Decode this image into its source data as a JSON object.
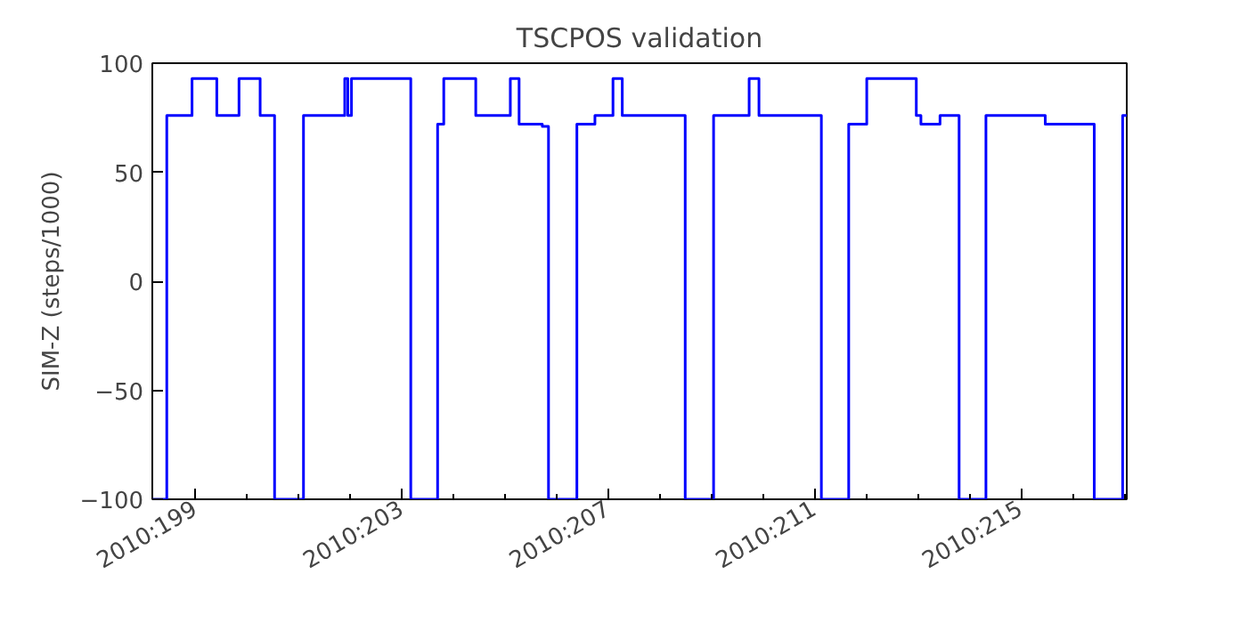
{
  "chart_data": {
    "type": "step",
    "title": "TSCPOS validation",
    "ylabel": "SIM-Z (steps/1000)",
    "x": [
      "2010-07-17T03:50",
      "2010-07-17T10:34",
      "2010-07-17T22:19",
      "2010-07-18T09:50",
      "2010-07-18T20:10",
      "2010-07-19T06:00",
      "2010-07-19T12:43",
      "2010-07-20T02:10",
      "2010-07-20T21:22",
      "2010-07-20T22:48",
      "2010-07-21T00:29",
      "2010-07-22T04:05",
      "2010-07-22T16:34",
      "2010-07-22T19:26",
      "2010-07-23T10:19",
      "2010-07-24T02:24",
      "2010-07-24T06:29",
      "2010-07-24T17:17",
      "2010-07-24T20:10",
      "2010-07-25T09:22",
      "2010-07-25T17:46",
      "2010-07-26T02:10",
      "2010-07-26T06:29",
      "2010-07-27T11:46",
      "2010-07-28T00:58",
      "2010-07-28T17:31",
      "2010-07-28T22:05",
      "2010-07-30T03:07",
      "2010-07-30T15:50",
      "2010-07-31T00:14",
      "2010-07-31T23:17",
      "2010-08-01T01:26",
      "2010-08-01T10:19",
      "2010-08-01T19:12",
      "2010-08-02T07:41",
      "2010-08-03T11:17",
      "2010-08-04T10:05",
      "2010-08-04T23:17",
      "2010-08-05T01:12"
    ],
    "series": [
      {
        "color": "#0000ff",
        "values": [
          -100,
          76,
          93,
          76,
          93,
          76,
          -100,
          76,
          93,
          76,
          93,
          -100,
          72,
          93,
          76,
          93,
          72,
          71,
          -100,
          72,
          76,
          93,
          76,
          -100,
          76,
          93,
          76,
          -100,
          72,
          93,
          76,
          72,
          76,
          -100,
          76,
          72,
          -100,
          76,
          76
        ]
      }
    ],
    "xlim": [
      "2010-07-17T03:50",
      "2010-08-05T01:12"
    ],
    "ylim": [
      -100,
      100
    ],
    "yticks": [
      -100,
      -50,
      0,
      50,
      100
    ],
    "xticks": [
      {
        "value": "2010-07-18",
        "label": "2010:199"
      },
      {
        "value": "2010-07-19",
        "label": null
      },
      {
        "value": "2010-07-20",
        "label": null
      },
      {
        "value": "2010-07-21",
        "label": null
      },
      {
        "value": "2010-07-22",
        "label": "2010:203"
      },
      {
        "value": "2010-07-23",
        "label": null
      },
      {
        "value": "2010-07-24",
        "label": null
      },
      {
        "value": "2010-07-25",
        "label": null
      },
      {
        "value": "2010-07-26",
        "label": "2010:207"
      },
      {
        "value": "2010-07-27",
        "label": null
      },
      {
        "value": "2010-07-28",
        "label": null
      },
      {
        "value": "2010-07-29",
        "label": null
      },
      {
        "value": "2010-07-30",
        "label": "2010:211"
      },
      {
        "value": "2010-07-31",
        "label": null
      },
      {
        "value": "2010-08-01",
        "label": null
      },
      {
        "value": "2010-08-02",
        "label": null
      },
      {
        "value": "2010-08-03",
        "label": "2010:215"
      },
      {
        "value": "2010-08-04",
        "label": null
      },
      {
        "value": "2010-08-05",
        "label": null
      }
    ],
    "grid": false,
    "line_style": "solid",
    "marker": "none"
  }
}
